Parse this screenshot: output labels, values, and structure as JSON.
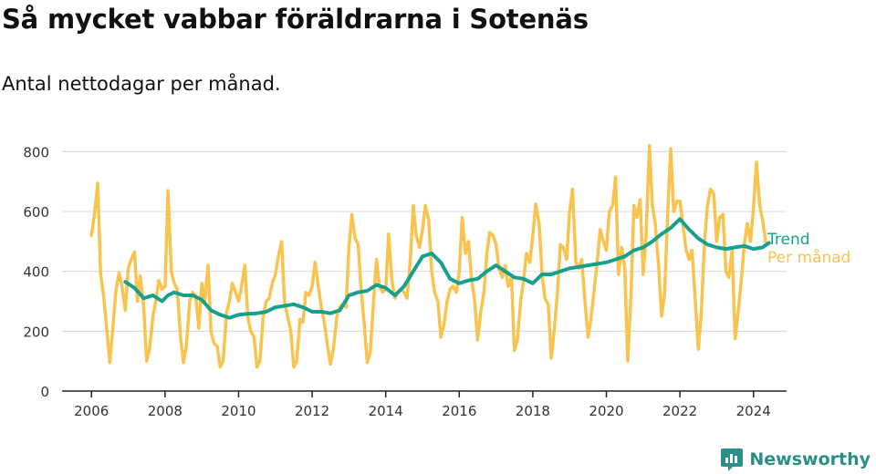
{
  "title": "Så mycket vabbar föräldrarna i Sotenäs",
  "subtitle": "Antal nettodagar per månad.",
  "brand": {
    "name": "Newsworthy",
    "color": "#2a8f86"
  },
  "colors": {
    "monthly": "#f8c44f",
    "trend": "#17a08c",
    "grid": "#dddddd",
    "axis": "#222222"
  },
  "chart_data": {
    "type": "line",
    "title": "Så mycket vabbar föräldrarna i Sotenäs",
    "subtitle": "Antal nettodagar per månad.",
    "xlabel": "",
    "ylabel": "",
    "ylim": [
      0,
      850
    ],
    "xlim": [
      2005.2,
      2024.9
    ],
    "grid": true,
    "legend": "right, at line ends",
    "yticks": [
      0,
      200,
      400,
      600,
      800
    ],
    "xticks": [
      2006,
      2008,
      2010,
      2012,
      2014,
      2016,
      2018,
      2020,
      2022,
      2024
    ],
    "series": [
      {
        "name": "Per månad",
        "color": "#f8c44f",
        "x": [
          2006.0,
          2006.08,
          2006.17,
          2006.25,
          2006.33,
          2006.42,
          2006.5,
          2006.58,
          2006.67,
          2006.75,
          2006.83,
          2006.92,
          2007.0,
          2007.08,
          2007.17,
          2007.25,
          2007.33,
          2007.42,
          2007.5,
          2007.58,
          2007.67,
          2007.75,
          2007.83,
          2007.92,
          2008.0,
          2008.08,
          2008.17,
          2008.25,
          2008.33,
          2008.42,
          2008.5,
          2008.58,
          2008.67,
          2008.75,
          2008.83,
          2008.92,
          2009.0,
          2009.08,
          2009.17,
          2009.25,
          2009.33,
          2009.42,
          2009.5,
          2009.58,
          2009.67,
          2009.75,
          2009.83,
          2009.92,
          2010.0,
          2010.08,
          2010.17,
          2010.25,
          2010.33,
          2010.42,
          2010.5,
          2010.58,
          2010.67,
          2010.75,
          2010.83,
          2010.92,
          2011.0,
          2011.08,
          2011.17,
          2011.25,
          2011.33,
          2011.42,
          2011.5,
          2011.58,
          2011.67,
          2011.75,
          2011.83,
          2011.92,
          2012.0,
          2012.08,
          2012.17,
          2012.25,
          2012.33,
          2012.42,
          2012.5,
          2012.58,
          2012.67,
          2012.75,
          2012.83,
          2012.92,
          2013.0,
          2013.08,
          2013.17,
          2013.25,
          2013.33,
          2013.42,
          2013.5,
          2013.58,
          2013.67,
          2013.75,
          2013.83,
          2013.92,
          2014.0,
          2014.08,
          2014.17,
          2014.25,
          2014.33,
          2014.42,
          2014.5,
          2014.58,
          2014.67,
          2014.75,
          2014.83,
          2014.92,
          2015.0,
          2015.08,
          2015.17,
          2015.25,
          2015.33,
          2015.42,
          2015.5,
          2015.58,
          2015.67,
          2015.75,
          2015.83,
          2015.92,
          2016.0,
          2016.08,
          2016.17,
          2016.25,
          2016.33,
          2016.42,
          2016.5,
          2016.58,
          2016.67,
          2016.75,
          2016.83,
          2016.92,
          2017.0,
          2017.08,
          2017.17,
          2017.25,
          2017.33,
          2017.42,
          2017.5,
          2017.58,
          2017.67,
          2017.75,
          2017.83,
          2017.92,
          2018.0,
          2018.08,
          2018.17,
          2018.25,
          2018.33,
          2018.42,
          2018.5,
          2018.58,
          2018.67,
          2018.75,
          2018.83,
          2018.92,
          2019.0,
          2019.08,
          2019.17,
          2019.25,
          2019.33,
          2019.42,
          2019.5,
          2019.58,
          2019.67,
          2019.75,
          2019.83,
          2019.92,
          2020.0,
          2020.08,
          2020.17,
          2020.25,
          2020.33,
          2020.42,
          2020.5,
          2020.58,
          2020.67,
          2020.75,
          2020.83,
          2020.92,
          2021.0,
          2021.08,
          2021.17,
          2021.25,
          2021.33,
          2021.42,
          2021.5,
          2021.58,
          2021.67,
          2021.75,
          2021.83,
          2021.92,
          2022.0,
          2022.08,
          2022.17,
          2022.25,
          2022.33,
          2022.42,
          2022.5,
          2022.58,
          2022.67,
          2022.75,
          2022.83,
          2022.92,
          2023.0,
          2023.08,
          2023.17,
          2023.25,
          2023.33,
          2023.42,
          2023.5,
          2023.58,
          2023.67,
          2023.75,
          2023.83,
          2023.92,
          2024.0,
          2024.08,
          2024.17,
          2024.25,
          2024.33
        ],
        "values": [
          520,
          590,
          695,
          390,
          320,
          200,
          95,
          210,
          340,
          395,
          350,
          270,
          410,
          440,
          465,
          300,
          385,
          280,
          100,
          140,
          250,
          300,
          370,
          340,
          350,
          670,
          400,
          360,
          340,
          180,
          95,
          150,
          300,
          330,
          320,
          210,
          360,
          300,
          420,
          200,
          160,
          150,
          80,
          100,
          260,
          300,
          360,
          330,
          300,
          350,
          420,
          250,
          200,
          180,
          80,
          100,
          250,
          300,
          310,
          360,
          390,
          450,
          500,
          300,
          250,
          200,
          80,
          100,
          240,
          230,
          330,
          320,
          350,
          430,
          350,
          280,
          230,
          150,
          90,
          140,
          250,
          280,
          290,
          280,
          480,
          590,
          510,
          490,
          340,
          220,
          95,
          130,
          300,
          440,
          350,
          330,
          340,
          525,
          370,
          310,
          330,
          340,
          330,
          310,
          440,
          620,
          520,
          480,
          540,
          620,
          570,
          400,
          330,
          300,
          180,
          220,
          300,
          340,
          350,
          330,
          400,
          580,
          460,
          500,
          380,
          300,
          170,
          260,
          330,
          460,
          530,
          520,
          490,
          410,
          380,
          420,
          350,
          380,
          135,
          170,
          300,
          370,
          460,
          430,
          520,
          625,
          560,
          390,
          310,
          290,
          110,
          200,
          330,
          490,
          480,
          440,
          600,
          675,
          430,
          410,
          440,
          300,
          180,
          240,
          340,
          430,
          540,
          500,
          470,
          600,
          620,
          715,
          390,
          480,
          410,
          100,
          320,
          620,
          580,
          640,
          390,
          520,
          820,
          620,
          560,
          420,
          250,
          320,
          600,
          810,
          600,
          635,
          635,
          560,
          470,
          440,
          470,
          300,
          140,
          260,
          500,
          620,
          675,
          660,
          500,
          580,
          590,
          400,
          380,
          470,
          175,
          260,
          370,
          490,
          560,
          500,
          610,
          765,
          620,
          570,
          500
        ]
      },
      {
        "name": "Trend",
        "color": "#17a08c",
        "x": [
          2006.92,
          2007.17,
          2007.42,
          2007.67,
          2007.92,
          2008.08,
          2008.25,
          2008.5,
          2008.75,
          2009.0,
          2009.25,
          2009.5,
          2009.75,
          2010.0,
          2010.25,
          2010.5,
          2010.75,
          2011.0,
          2011.25,
          2011.5,
          2011.75,
          2012.0,
          2012.25,
          2012.5,
          2012.75,
          2013.0,
          2013.25,
          2013.5,
          2013.75,
          2014.0,
          2014.25,
          2014.5,
          2014.75,
          2015.0,
          2015.25,
          2015.5,
          2015.75,
          2016.0,
          2016.25,
          2016.5,
          2016.75,
          2017.0,
          2017.25,
          2017.5,
          2017.75,
          2018.0,
          2018.25,
          2018.5,
          2018.75,
          2019.0,
          2019.25,
          2019.5,
          2019.75,
          2020.0,
          2020.25,
          2020.5,
          2020.75,
          2021.0,
          2021.25,
          2021.5,
          2021.75,
          2022.0,
          2022.25,
          2022.5,
          2022.75,
          2023.0,
          2023.25,
          2023.5,
          2023.75,
          2024.0,
          2024.25,
          2024.42
        ],
        "values": [
          365,
          345,
          310,
          320,
          300,
          320,
          330,
          320,
          320,
          305,
          270,
          255,
          245,
          255,
          258,
          260,
          265,
          280,
          285,
          290,
          280,
          265,
          265,
          260,
          270,
          320,
          330,
          335,
          355,
          345,
          320,
          350,
          400,
          450,
          460,
          430,
          375,
          360,
          370,
          375,
          400,
          420,
          400,
          380,
          375,
          360,
          390,
          390,
          400,
          410,
          415,
          420,
          425,
          430,
          440,
          450,
          470,
          480,
          500,
          525,
          545,
          575,
          540,
          510,
          490,
          480,
          475,
          480,
          485,
          475,
          480,
          495
        ]
      }
    ]
  }
}
